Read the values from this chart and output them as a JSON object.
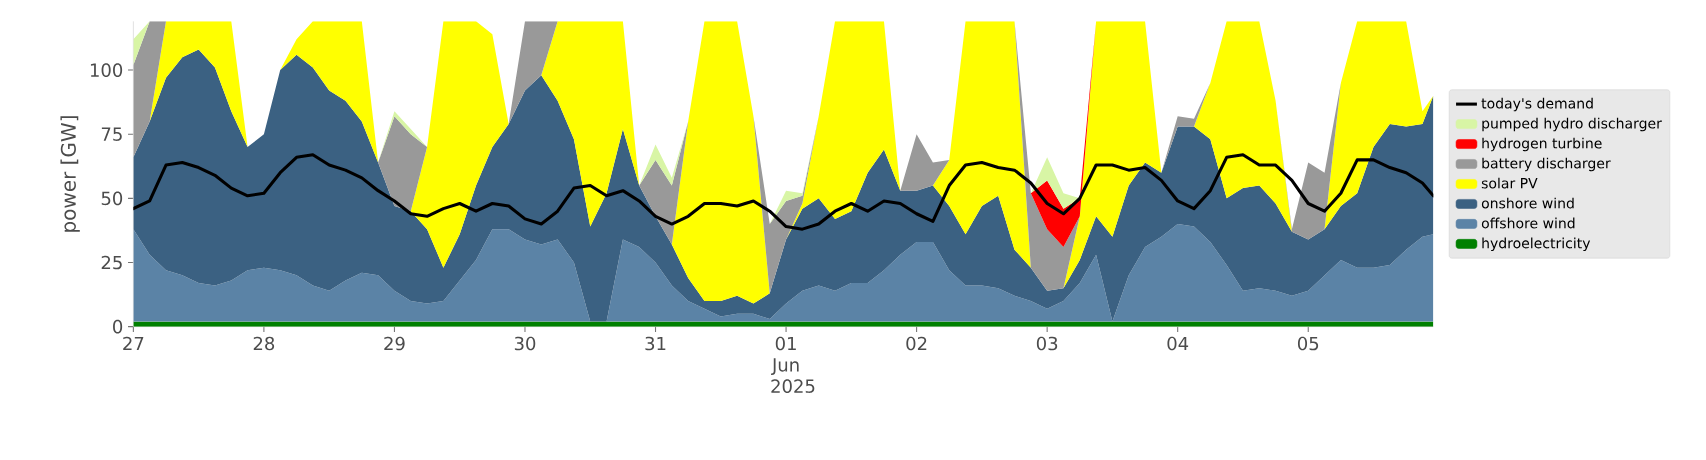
{
  "chart_data": {
    "type": "area",
    "stacked": true,
    "ylabel": "power [GW]",
    "legend": "right",
    "ylim": [
      0,
      119
    ],
    "yticks": [
      0,
      25,
      50,
      75,
      100
    ],
    "xlim": [
      "2025-05-27T00:00",
      "2025-06-05T23:00"
    ],
    "xticks": [
      {
        "value": "2025-05-27",
        "label": "27"
      },
      {
        "value": "2025-05-28",
        "label": "28"
      },
      {
        "value": "2025-05-29",
        "label": "29"
      },
      {
        "value": "2025-05-30",
        "label": "30"
      },
      {
        "value": "2025-05-31",
        "label": "31"
      },
      {
        "value": "2025-06-01",
        "label": "01 Jun 2025"
      },
      {
        "value": "2025-06-02",
        "label": "02"
      },
      {
        "value": "2025-06-03",
        "label": "03"
      },
      {
        "value": "2025-06-04",
        "label": "04"
      },
      {
        "value": "2025-06-05",
        "label": "05"
      }
    ],
    "x": [
      "2025-05-27T00:00",
      "2025-05-27T03:00",
      "2025-05-27T06:00",
      "2025-05-27T09:00",
      "2025-05-27T12:00",
      "2025-05-27T15:00",
      "2025-05-27T18:00",
      "2025-05-27T21:00",
      "2025-05-28T00:00",
      "2025-05-28T03:00",
      "2025-05-28T06:00",
      "2025-05-28T09:00",
      "2025-05-28T12:00",
      "2025-05-28T15:00",
      "2025-05-28T18:00",
      "2025-05-28T21:00",
      "2025-05-29T00:00",
      "2025-05-29T03:00",
      "2025-05-29T06:00",
      "2025-05-29T09:00",
      "2025-05-29T12:00",
      "2025-05-29T15:00",
      "2025-05-29T18:00",
      "2025-05-29T21:00",
      "2025-05-30T00:00",
      "2025-05-30T03:00",
      "2025-05-30T06:00",
      "2025-05-30T09:00",
      "2025-05-30T12:00",
      "2025-05-30T15:00",
      "2025-05-30T18:00",
      "2025-05-30T21:00",
      "2025-05-31T00:00",
      "2025-05-31T03:00",
      "2025-05-31T06:00",
      "2025-05-31T09:00",
      "2025-05-31T12:00",
      "2025-05-31T15:00",
      "2025-05-31T18:00",
      "2025-05-31T21:00",
      "2025-06-01T00:00",
      "2025-06-01T03:00",
      "2025-06-01T06:00",
      "2025-06-01T09:00",
      "2025-06-01T12:00",
      "2025-06-01T15:00",
      "2025-06-01T18:00",
      "2025-06-01T21:00",
      "2025-06-02T00:00",
      "2025-06-02T03:00",
      "2025-06-02T06:00",
      "2025-06-02T09:00",
      "2025-06-02T12:00",
      "2025-06-02T15:00",
      "2025-06-02T18:00",
      "2025-06-02T21:00",
      "2025-06-03T00:00",
      "2025-06-03T03:00",
      "2025-06-03T06:00",
      "2025-06-03T09:00",
      "2025-06-03T12:00",
      "2025-06-03T15:00",
      "2025-06-03T18:00",
      "2025-06-03T21:00",
      "2025-06-04T00:00",
      "2025-06-04T03:00",
      "2025-06-04T06:00",
      "2025-06-04T09:00",
      "2025-06-04T12:00",
      "2025-06-04T15:00",
      "2025-06-04T18:00",
      "2025-06-04T21:00",
      "2025-06-05T00:00",
      "2025-06-05T03:00",
      "2025-06-05T06:00",
      "2025-06-05T09:00",
      "2025-06-05T12:00",
      "2025-06-05T15:00",
      "2025-06-05T18:00",
      "2025-06-05T21:00",
      "2025-06-05T23:00"
    ],
    "series": [
      {
        "name": "hydroelectricity",
        "color": "#008000",
        "values": [
          2,
          2,
          2,
          2,
          2,
          2,
          2,
          2,
          2,
          2,
          2,
          2,
          2,
          2,
          2,
          2,
          2,
          2,
          2,
          2,
          2,
          2,
          2,
          2,
          2,
          2,
          2,
          2,
          2,
          2,
          2,
          2,
          2,
          2,
          2,
          2,
          2,
          2,
          2,
          2,
          2,
          2,
          2,
          2,
          2,
          2,
          2,
          2,
          2,
          2,
          2,
          2,
          2,
          2,
          2,
          2,
          2,
          2,
          2,
          2,
          2,
          2,
          2,
          2,
          2,
          2,
          2,
          2,
          2,
          2,
          2,
          2,
          2,
          2,
          2,
          2,
          2,
          2,
          2,
          2,
          2
        ]
      },
      {
        "name": "offshore wind",
        "color": "#5b83a6",
        "values": [
          36,
          26,
          20,
          18,
          15,
          14,
          16,
          20,
          21,
          20,
          18,
          14,
          12,
          16,
          19,
          18,
          12,
          8,
          7,
          8,
          16,
          24,
          36,
          36,
          32,
          30,
          32,
          23,
          0,
          0,
          32,
          29,
          23,
          14,
          8,
          5,
          2,
          3,
          3,
          1,
          7,
          12,
          14,
          12,
          15,
          15,
          20,
          26,
          31,
          31,
          20,
          14,
          14,
          13,
          10,
          8,
          5,
          8,
          15,
          26,
          0,
          18,
          29,
          33,
          38,
          37,
          31,
          22,
          12,
          13,
          12,
          10,
          12,
          18,
          24,
          21,
          21,
          22,
          28,
          33,
          34
        ]
      },
      {
        "name": "onshore wind",
        "color": "#3b6182",
        "values": [
          28,
          52,
          75,
          85,
          91,
          85,
          66,
          48,
          52,
          78,
          86,
          85,
          78,
          70,
          59,
          44,
          33,
          35,
          29,
          13,
          18,
          29,
          32,
          41,
          58,
          66,
          54,
          48,
          37,
          50,
          43,
          24,
          18,
          16,
          9,
          3,
          6,
          7,
          4,
          10,
          25,
          32,
          34,
          28,
          28,
          43,
          47,
          25,
          20,
          22,
          25,
          20,
          31,
          36,
          18,
          13,
          7,
          5,
          9,
          15,
          33,
          35,
          33,
          25,
          38,
          39,
          40,
          26,
          40,
          40,
          34,
          25,
          20,
          18,
          21,
          29,
          47,
          55,
          48,
          44,
          54
        ]
      },
      {
        "name": "solar PV",
        "color": "#ffff00",
        "values": [
          0,
          0,
          22,
          14,
          11,
          18,
          35,
          0,
          0,
          0,
          6,
          18,
          27,
          31,
          39,
          0,
          0,
          0,
          32,
          96,
          83,
          64,
          44,
          0,
          0,
          0,
          31,
          46,
          80,
          67,
          42,
          0,
          0,
          0,
          61,
          109,
          109,
          107,
          73,
          0,
          0,
          2,
          32,
          77,
          74,
          59,
          50,
          0,
          0,
          0,
          18,
          83,
          72,
          68,
          89,
          0,
          0,
          0,
          17,
          76,
          84,
          64,
          55,
          0,
          0,
          0,
          22,
          69,
          65,
          64,
          40,
          0,
          0,
          0,
          48,
          67,
          49,
          40,
          41,
          5,
          0
        ]
      },
      {
        "name": "battery discharger",
        "color": "#999999",
        "values": [
          36,
          39,
          0,
          0,
          0,
          0,
          0,
          0,
          0,
          0,
          0,
          0,
          0,
          0,
          0,
          0,
          35,
          30,
          0,
          0,
          0,
          0,
          0,
          0,
          27,
          21,
          0,
          0,
          0,
          0,
          0,
          0,
          22,
          23,
          0,
          0,
          0,
          0,
          0,
          27,
          15,
          3,
          0,
          0,
          0,
          0,
          0,
          0,
          22,
          9,
          0,
          0,
          0,
          0,
          0,
          29,
          24,
          16,
          0,
          0,
          0,
          0,
          0,
          0,
          4,
          3,
          0,
          0,
          0,
          0,
          0,
          1,
          30,
          22,
          0,
          0,
          0,
          0,
          0,
          0,
          0
        ]
      },
      {
        "name": "hydrogen turbine",
        "color": "#ff0000",
        "values": [
          0,
          0,
          0,
          0,
          0,
          0,
          0,
          0,
          0,
          0,
          0,
          0,
          0,
          0,
          0,
          0,
          0,
          0,
          0,
          0,
          0,
          0,
          0,
          0,
          0,
          0,
          0,
          0,
          0,
          0,
          0,
          0,
          0,
          0,
          0,
          0,
          0,
          0,
          0,
          0,
          0,
          0,
          0,
          0,
          0,
          0,
          0,
          0,
          0,
          0,
          0,
          0,
          0,
          0,
          0,
          0,
          19,
          15,
          7,
          0,
          0,
          0,
          0,
          0,
          0,
          0,
          0,
          0,
          0,
          0,
          0,
          0,
          0,
          0,
          0,
          0,
          0,
          0,
          0,
          0,
          0
        ]
      },
      {
        "name": "pumped hydro discharger",
        "color": "#d8f5a5",
        "values": [
          10,
          0,
          0,
          0,
          0,
          0,
          0,
          0,
          0,
          0,
          0,
          0,
          0,
          0,
          0,
          0,
          2,
          2,
          0,
          0,
          0,
          0,
          0,
          0,
          0,
          0,
          0,
          0,
          0,
          0,
          0,
          0,
          6,
          3,
          0,
          0,
          0,
          0,
          0,
          0,
          4,
          1,
          0,
          0,
          0,
          0,
          0,
          0,
          0,
          0,
          0,
          0,
          0,
          0,
          0,
          0,
          9,
          6,
          0,
          0,
          0,
          0,
          0,
          0,
          0,
          0,
          0,
          0,
          0,
          0,
          0,
          0,
          0,
          0,
          0,
          0,
          0,
          0,
          0,
          0,
          0
        ]
      },
      {
        "name": "today's demand",
        "type": "line",
        "color": "#000000",
        "values": [
          46,
          49,
          63,
          64,
          62,
          59,
          54,
          51,
          52,
          60,
          66,
          67,
          63,
          61,
          58,
          53,
          49,
          44,
          43,
          46,
          48,
          45,
          48,
          47,
          42,
          40,
          45,
          54,
          55,
          51,
          53,
          49,
          43,
          40,
          43,
          48,
          48,
          47,
          49,
          45,
          39,
          38,
          40,
          45,
          48,
          45,
          49,
          48,
          44,
          41,
          55,
          63,
          64,
          62,
          61,
          56,
          48,
          44,
          50,
          63,
          63,
          61,
          62,
          57,
          49,
          46,
          53,
          66,
          67,
          63,
          63,
          57,
          48,
          45,
          52,
          65,
          65,
          62,
          60,
          56,
          51
        ]
      }
    ]
  }
}
